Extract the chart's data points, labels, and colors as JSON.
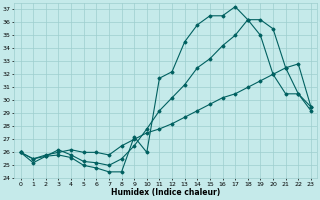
{
  "xlabel": "Humidex (Indice chaleur)",
  "bg_color": "#c5eaea",
  "grid_color": "#9ecece",
  "line_color": "#006060",
  "ylim": [
    24,
    37.5
  ],
  "xlim": [
    -0.5,
    23.5
  ],
  "yticks": [
    24,
    25,
    26,
    27,
    28,
    29,
    30,
    31,
    32,
    33,
    34,
    35,
    36,
    37
  ],
  "xticks": [
    0,
    1,
    2,
    3,
    4,
    5,
    6,
    7,
    8,
    9,
    10,
    11,
    12,
    13,
    14,
    15,
    16,
    17,
    18,
    19,
    20,
    21,
    22,
    23
  ],
  "series1_x": [
    0,
    1,
    2,
    3,
    4,
    5,
    6,
    7,
    8,
    9,
    10,
    11,
    12,
    13,
    14,
    15,
    16,
    17,
    18,
    19,
    20,
    21,
    22,
    23
  ],
  "series1_y": [
    26.0,
    25.2,
    25.7,
    25.8,
    25.6,
    25.0,
    24.8,
    24.5,
    24.5,
    27.2,
    26.0,
    31.7,
    32.2,
    34.5,
    35.8,
    36.5,
    36.5,
    37.2,
    36.2,
    35.0,
    32.0,
    30.5,
    30.5,
    29.5
  ],
  "series2_x": [
    0,
    1,
    2,
    3,
    4,
    5,
    6,
    7,
    8,
    9,
    10,
    11,
    12,
    13,
    14,
    15,
    16,
    17,
    18,
    19,
    20,
    21,
    22,
    23
  ],
  "series2_y": [
    26.0,
    25.5,
    25.7,
    26.2,
    25.8,
    25.3,
    25.2,
    25.0,
    25.5,
    26.5,
    27.8,
    29.2,
    30.2,
    31.2,
    32.5,
    33.2,
    34.2,
    35.0,
    36.2,
    36.2,
    35.5,
    32.5,
    30.5,
    29.2
  ],
  "series3_x": [
    0,
    1,
    2,
    3,
    4,
    5,
    6,
    7,
    8,
    9,
    10,
    11,
    12,
    13,
    14,
    15,
    16,
    17,
    18,
    19,
    20,
    21,
    22,
    23
  ],
  "series3_y": [
    26.0,
    25.5,
    25.8,
    26.0,
    26.2,
    26.0,
    26.0,
    25.8,
    26.5,
    27.0,
    27.5,
    27.8,
    28.2,
    28.7,
    29.2,
    29.7,
    30.2,
    30.5,
    31.0,
    31.5,
    32.0,
    32.5,
    32.8,
    29.5
  ]
}
